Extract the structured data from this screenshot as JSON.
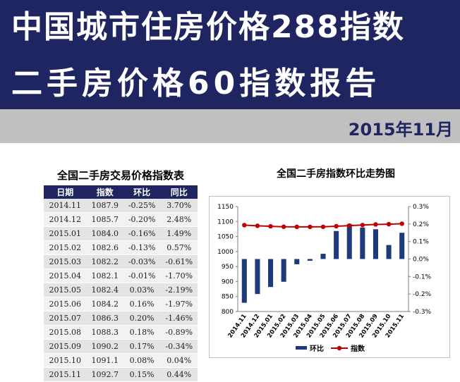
{
  "banner": {
    "line1": "中国城市住房价格288指数",
    "line2": "二手房价格60指数报告",
    "date": "2015年11月"
  },
  "table": {
    "title": "全国二手房交易价格指数表",
    "headers": [
      "日期",
      "指数",
      "环比",
      "同比"
    ],
    "rows": [
      [
        "2014.11",
        "1087.9",
        "-0.25%",
        "3.70%"
      ],
      [
        "2014.12",
        "1085.7",
        "-0.20%",
        "2.48%"
      ],
      [
        "2015.01",
        "1084.0",
        "-0.16%",
        "1.49%"
      ],
      [
        "2015.02",
        "1082.6",
        "-0.13%",
        "0.57%"
      ],
      [
        "2015.03",
        "1082.2",
        "-0.03%",
        "-0.61%"
      ],
      [
        "2015.04",
        "1082.1",
        "-0.01%",
        "-1.70%"
      ],
      [
        "2015.05",
        "1082.4",
        "0.03%",
        "-2.19%"
      ],
      [
        "2015.06",
        "1084.2",
        "0.16%",
        "-1.97%"
      ],
      [
        "2015.07",
        "1086.3",
        "0.20%",
        "-1.46%"
      ],
      [
        "2015.08",
        "1088.3",
        "0.18%",
        "-0.89%"
      ],
      [
        "2015.09",
        "1090.2",
        "0.17%",
        "-0.34%"
      ],
      [
        "2015.10",
        "1091.1",
        "0.08%",
        "0.04%"
      ],
      [
        "2015.11",
        "1092.7",
        "0.15%",
        "0.44%"
      ]
    ]
  },
  "chart_data": {
    "type": "bar",
    "title": "全国二手房指数环比走势图",
    "categories": [
      "2014.11",
      "2014.12",
      "2015.01",
      "2015.02",
      "2015.03",
      "2015.04",
      "2015.05",
      "2015.06",
      "2015.07",
      "2015.08",
      "2015.09",
      "2015.10",
      "2015.11"
    ],
    "series": [
      {
        "name": "环比",
        "type": "bar",
        "axis": "right",
        "color": "#1f3a7a",
        "values": [
          -0.25,
          -0.2,
          -0.16,
          -0.13,
          -0.03,
          -0.01,
          0.03,
          0.16,
          0.2,
          0.18,
          0.17,
          0.08,
          0.15
        ]
      },
      {
        "name": "指数",
        "type": "line",
        "axis": "left",
        "color": "#c00000",
        "values": [
          1087.9,
          1085.7,
          1084.0,
          1082.6,
          1082.2,
          1082.1,
          1082.4,
          1084.2,
          1086.3,
          1088.3,
          1090.2,
          1091.1,
          1092.7
        ]
      }
    ],
    "y_left": {
      "min": 800,
      "max": 1150,
      "ticks": [
        "800",
        "850",
        "900",
        "950",
        "1000",
        "1050",
        "1100",
        "1150"
      ]
    },
    "y_right": {
      "min": -0.3,
      "max": 0.3,
      "ticks": [
        "-0.3%",
        "-0.2%",
        "-0.1%",
        "0.0%",
        "0.1%",
        "0.2%",
        "0.3%"
      ]
    },
    "legend_position": "bottom",
    "grid": false
  }
}
